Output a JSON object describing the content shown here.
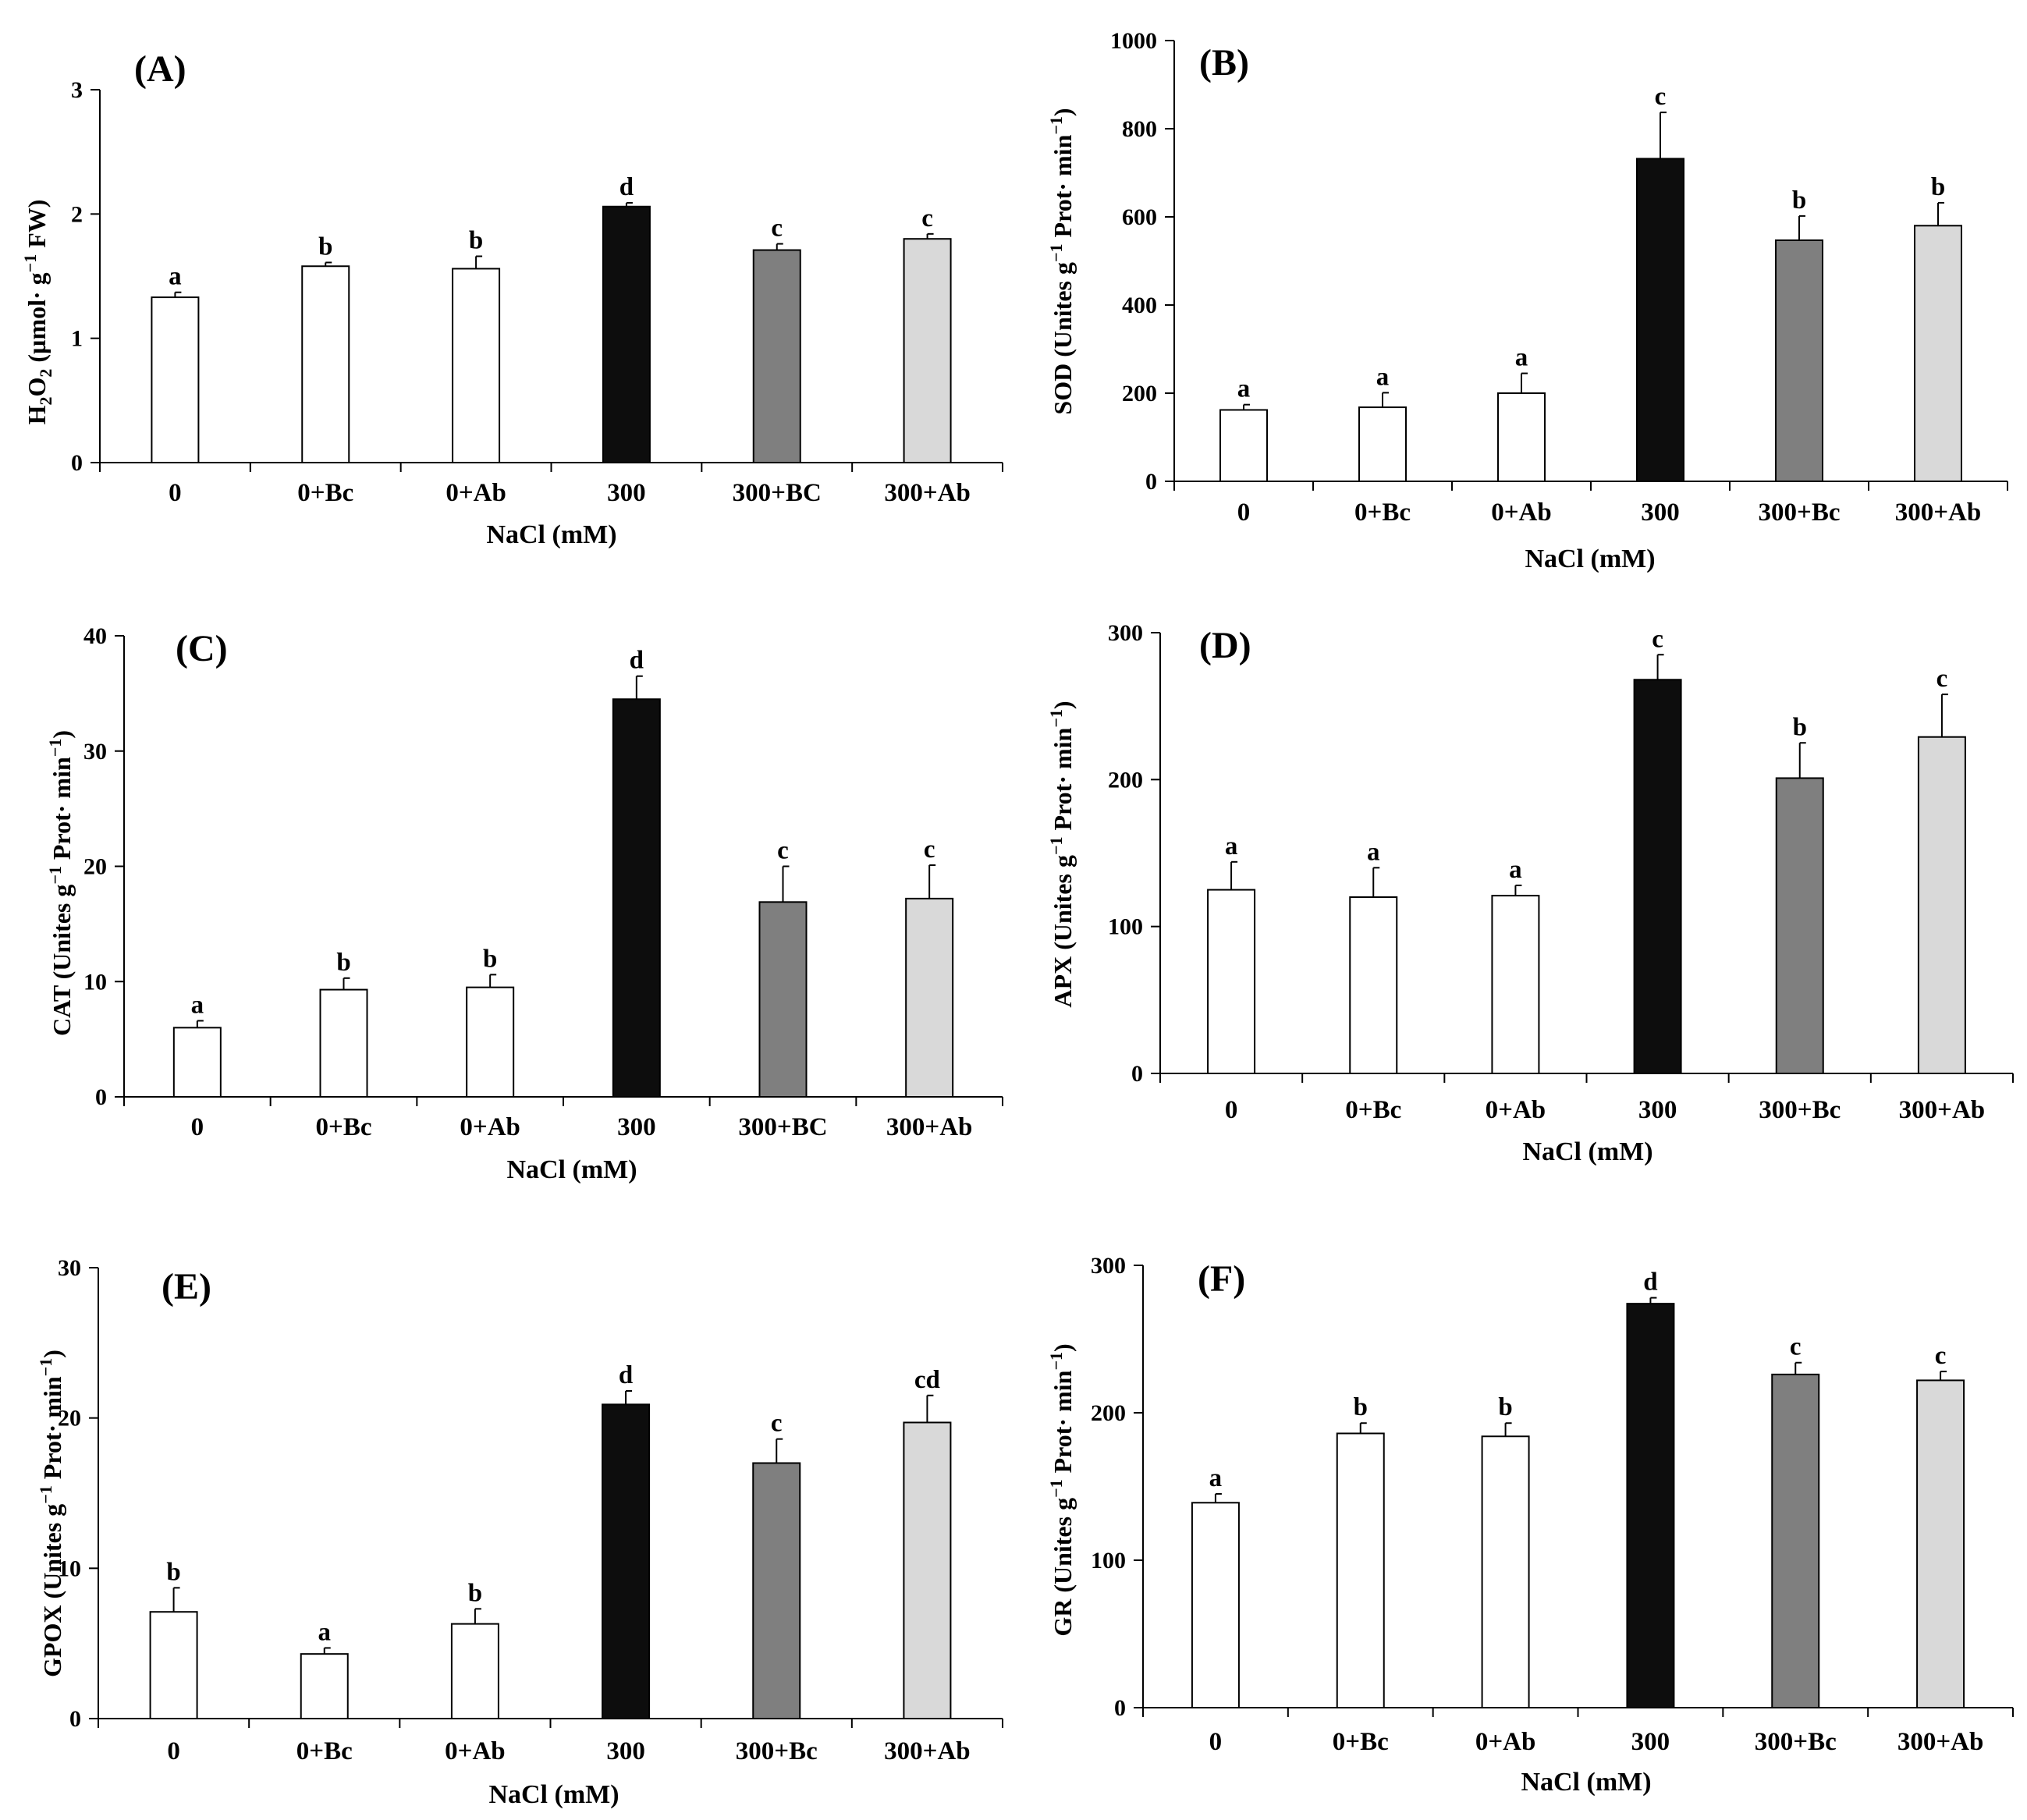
{
  "chart_data": [
    {
      "panel": "(A)",
      "type": "bar",
      "ylabel": "H2O2 (µmol· g−1 FW)",
      "ylabel_parts": {
        "pre": "H",
        "sub": "2",
        "mid": "O",
        "sub2": "2",
        "post": " (µmol· g",
        "sup": "−1",
        "end": " FW)"
      },
      "xlabel": "NaCl (mM)",
      "ylim": [
        0,
        3
      ],
      "yticks": [
        0,
        1,
        2,
        3
      ],
      "categories": [
        "0",
        "0+Bc",
        "0+Ab",
        "300",
        "300+BC",
        "300+Ab"
      ],
      "values": [
        1.33,
        1.58,
        1.56,
        2.06,
        1.71,
        1.8
      ],
      "errors": [
        0.04,
        0.03,
        0.1,
        0.03,
        0.05,
        0.04
      ],
      "letters": [
        "a",
        "b",
        "b",
        "d",
        "c",
        "c"
      ],
      "colors": [
        "#ffffff",
        "#ffffff",
        "#ffffff",
        "#0d0d0d",
        "#7f7f7f",
        "#d9d9d9"
      ]
    },
    {
      "panel": "(B)",
      "type": "bar",
      "ylabel": "SOD (Unites g−1 Prot· min−1)",
      "ylabel_parts": {
        "pre": "SOD (Unites g",
        "sup": "−1",
        "mid": " Prot· min",
        "sup2": "−1",
        "post": ")"
      },
      "xlabel": "NaCl (mM)",
      "ylim": [
        0,
        1000
      ],
      "yticks": [
        0,
        200,
        400,
        600,
        800,
        1000
      ],
      "categories": [
        "0",
        "0+Bc",
        "0+Ab",
        "300",
        "300+Bc",
        "300+Ab"
      ],
      "values": [
        162,
        168,
        200,
        732,
        547,
        580
      ],
      "errors": [
        12,
        33,
        45,
        105,
        55,
        52
      ],
      "letters": [
        "a",
        "a",
        "a",
        "c",
        "b",
        "b"
      ],
      "colors": [
        "#ffffff",
        "#ffffff",
        "#ffffff",
        "#0d0d0d",
        "#7f7f7f",
        "#d9d9d9"
      ]
    },
    {
      "panel": "(C)",
      "type": "bar",
      "ylabel": "CAT (Unites g−1 Prot· min−1)",
      "ylabel_parts": {
        "pre": "CAT (Unites g",
        "sup": "−1",
        "mid": " Prot· min",
        "sup2": "−1",
        "post": ")"
      },
      "xlabel": "NaCl (mM)",
      "ylim": [
        0,
        40
      ],
      "yticks": [
        0,
        10,
        20,
        30,
        40
      ],
      "categories": [
        "0",
        "0+Bc",
        "0+Ab",
        "300",
        "300+BC",
        "300+Ab"
      ],
      "values": [
        6.0,
        9.3,
        9.5,
        34.5,
        16.9,
        17.2
      ],
      "errors": [
        0.6,
        1.0,
        1.1,
        2.0,
        3.1,
        2.9
      ],
      "letters": [
        "a",
        "b",
        "b",
        "d",
        "c",
        "c"
      ],
      "colors": [
        "#ffffff",
        "#ffffff",
        "#ffffff",
        "#0d0d0d",
        "#7f7f7f",
        "#d9d9d9"
      ]
    },
    {
      "panel": "(D)",
      "type": "bar",
      "ylabel": "APX (Unites g−1 Prot· min−1)",
      "ylabel_parts": {
        "pre": "APX (Unites g",
        "sup": "−1",
        "mid": " Prot· min",
        "sup2": "−1",
        "post": ")"
      },
      "xlabel": "NaCl (mM)",
      "ylim": [
        0,
        300
      ],
      "yticks": [
        0,
        100,
        200,
        300
      ],
      "categories": [
        "0",
        "0+Bc",
        "0+Ab",
        "300",
        "300+Bc",
        "300+Ab"
      ],
      "values": [
        125,
        120,
        121,
        268,
        201,
        229
      ],
      "errors": [
        19,
        20,
        7,
        17,
        24,
        29
      ],
      "letters": [
        "a",
        "a",
        "a",
        "c",
        "b",
        "c"
      ],
      "colors": [
        "#ffffff",
        "#ffffff",
        "#ffffff",
        "#0d0d0d",
        "#7f7f7f",
        "#d9d9d9"
      ]
    },
    {
      "panel": "(E)",
      "type": "bar",
      "ylabel": "GPOX (Unites g−1 Prot· min−1)",
      "ylabel_parts": {
        "pre": "GPOX (Unites g",
        "sup": "−1",
        "mid": " Prot· min",
        "sup2": "−1",
        "post": ")"
      },
      "xlabel": "NaCl (mM)",
      "ylim": [
        0,
        30
      ],
      "yticks": [
        0,
        10,
        20,
        30
      ],
      "categories": [
        "0",
        "0+Bc",
        "0+Ab",
        "300",
        "300+Bc",
        "300+Ab"
      ],
      "values": [
        7.1,
        4.3,
        6.3,
        20.9,
        17.0,
        19.7
      ],
      "errors": [
        1.6,
        0.4,
        1.0,
        0.9,
        1.6,
        1.8
      ],
      "letters": [
        "b",
        "a",
        "b",
        "d",
        "c",
        "cd"
      ],
      "colors": [
        "#ffffff",
        "#ffffff",
        "#ffffff",
        "#0d0d0d",
        "#7f7f7f",
        "#d9d9d9"
      ]
    },
    {
      "panel": "(F)",
      "type": "bar",
      "ylabel": "GR (Unites g−1 Prot· min−1)",
      "ylabel_parts": {
        "pre": "GR (Unites g",
        "sup": "−1",
        "mid": " Prot· min",
        "sup2": "−1",
        "post": ")"
      },
      "xlabel": "NaCl (mM)",
      "ylim": [
        0,
        300
      ],
      "yticks": [
        0,
        100,
        200,
        300
      ],
      "categories": [
        "0",
        "0+Bc",
        "0+Ab",
        "300",
        "300+Bc",
        "300+Ab"
      ],
      "values": [
        139,
        186,
        184,
        274,
        226,
        222
      ],
      "errors": [
        6,
        7,
        9,
        4,
        8,
        6
      ],
      "letters": [
        "a",
        "b",
        "b",
        "d",
        "c",
        "c"
      ],
      "colors": [
        "#ffffff",
        "#ffffff",
        "#ffffff",
        "#0d0d0d",
        "#7f7f7f",
        "#d9d9d9"
      ]
    }
  ]
}
